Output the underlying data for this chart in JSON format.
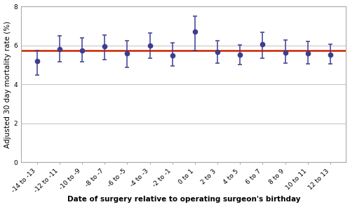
{
  "categories": [
    "-14 to -13",
    "-12 to -11",
    "-10 to -9",
    "-8 to -7",
    "-6 to -5",
    "-4 to -3",
    "-2 to -1",
    "0 to 1",
    "2 to 3",
    "4 to 5",
    "6 to 7",
    "8 to 9",
    "10 to 11",
    "12 to 13"
  ],
  "values": [
    5.2,
    5.8,
    5.75,
    5.95,
    5.6,
    6.0,
    5.48,
    6.7,
    5.65,
    5.52,
    6.05,
    5.62,
    5.58,
    5.52
  ],
  "err_low": [
    0.72,
    0.65,
    0.6,
    0.68,
    0.72,
    0.65,
    0.55,
    0.95,
    0.55,
    0.5,
    0.72,
    0.52,
    0.52,
    0.48
  ],
  "err_high": [
    0.55,
    0.68,
    0.62,
    0.58,
    0.65,
    0.65,
    0.65,
    0.8,
    0.6,
    0.52,
    0.62,
    0.65,
    0.62,
    0.55
  ],
  "ref_line": 5.72,
  "ref_color": "#cc2200",
  "point_color": "#3d3d8f",
  "point_size": 4.5,
  "elinewidth": 1.1,
  "capsize": 2.5,
  "capthick": 1.1,
  "ref_linewidth": 1.8,
  "ylabel": "Adjusted 30 day mortality rate (%)",
  "xlabel": "Date of surgery relative to operating surgeon's birthday",
  "ylim": [
    0,
    8
  ],
  "yticks": [
    0,
    2,
    4,
    6,
    8
  ],
  "background_color": "#ffffff",
  "plot_bg_color": "#ffffff",
  "grid_color": "#c8c8c8",
  "spine_color": "#aaaaaa",
  "label_fontsize": 7.5,
  "tick_fontsize": 6.5,
  "xlabel_fontsize": 7.5,
  "xlabel_fontweight": "bold"
}
